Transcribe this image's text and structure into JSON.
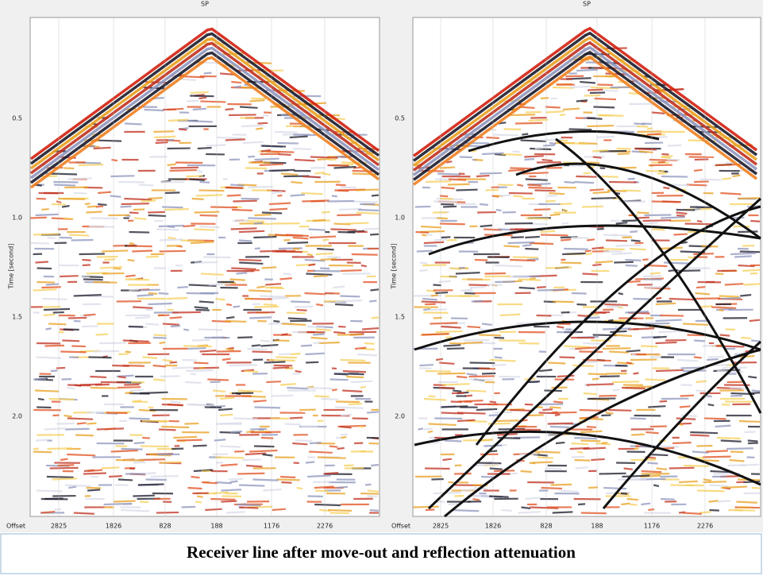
{
  "figure": {
    "panels": [
      {
        "title": "SP",
        "y_label": "Time [second]",
        "y_ticks": [
          "0.5",
          "1.0",
          "1.5",
          "2.0"
        ],
        "x_label": "Offset",
        "x_ticks": [
          "2825",
          "1826",
          "828",
          "188",
          "1176",
          "2276"
        ]
      },
      {
        "title": "SP",
        "y_label": "Time [second]",
        "y_ticks": [
          "0.5",
          "1.0",
          "1.5",
          "2.0"
        ],
        "x_label": "Offset",
        "x_ticks": [
          "2825",
          "1826",
          "828",
          "188",
          "1176",
          "2276"
        ]
      }
    ],
    "caption": "Receiver line after move-out and reflection attenuation"
  }
}
